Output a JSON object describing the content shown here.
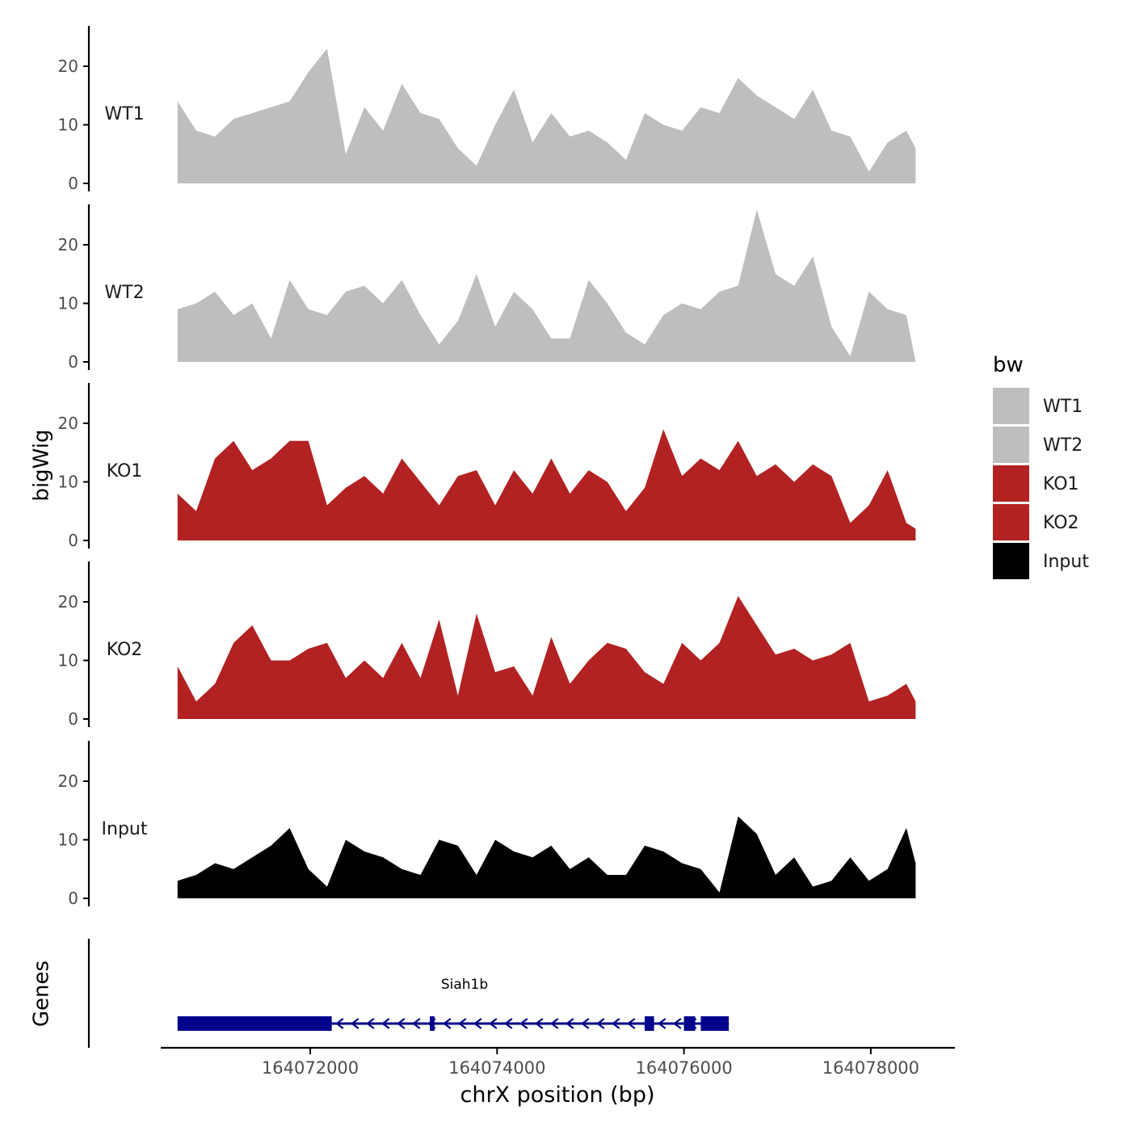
{
  "chart_data": {
    "type": "area",
    "title": "",
    "xlabel": "chrX position (bp)",
    "ylabel": "bigWig",
    "genes_label": "Genes",
    "xlim": [
      164070400,
      164078900
    ],
    "x_ticks": [
      164072000,
      164074000,
      164076000,
      164078000
    ],
    "x_tick_labels": [
      "164072000",
      "164074000",
      "164076000",
      "164078000"
    ],
    "ylim": [
      0,
      27
    ],
    "y_ticks": [
      0,
      10,
      20
    ],
    "y_tick_labels": [
      "0",
      "10",
      "20"
    ],
    "legend": {
      "title": "bw",
      "position": "right",
      "entries": [
        {
          "label": "WT1",
          "color": "#bebebe"
        },
        {
          "label": "WT2",
          "color": "#bebebe"
        },
        {
          "label": "KO1",
          "color": "#b22222"
        },
        {
          "label": "KO2",
          "color": "#b22222"
        },
        {
          "label": "Input",
          "color": "#000000"
        }
      ]
    },
    "x_positions": [
      164070580,
      164070780,
      164070980,
      164071180,
      164071380,
      164071580,
      164071780,
      164071980,
      164072180,
      164072380,
      164072580,
      164072780,
      164072980,
      164073180,
      164073380,
      164073580,
      164073780,
      164073980,
      164074180,
      164074380,
      164074580,
      164074780,
      164074980,
      164075180,
      164075380,
      164075580,
      164075780,
      164075980,
      164076180,
      164076380,
      164076580,
      164076780,
      164076980,
      164077180,
      164077380,
      164077580,
      164077780,
      164077980,
      164078180,
      164078380,
      164078480
    ],
    "series": [
      {
        "name": "WT1",
        "color": "#bebebe",
        "values": [
          14,
          9,
          8,
          11,
          12,
          13,
          14,
          19,
          23,
          5,
          13,
          9,
          17,
          12,
          11,
          6,
          3,
          10,
          16,
          7,
          12,
          8,
          9,
          7,
          4,
          12,
          10,
          9,
          13,
          12,
          18,
          15,
          13,
          11,
          16,
          9,
          8,
          2,
          7,
          9,
          6
        ]
      },
      {
        "name": "WT2",
        "color": "#bebebe",
        "values": [
          9,
          10,
          12,
          8,
          10,
          4,
          14,
          9,
          8,
          12,
          13,
          10,
          14,
          8,
          3,
          7,
          15,
          6,
          12,
          9,
          4,
          4,
          14,
          10,
          5,
          3,
          8,
          10,
          9,
          12,
          13,
          26,
          15,
          13,
          18,
          6,
          1,
          12,
          9,
          8,
          0
        ]
      },
      {
        "name": "KO1",
        "color": "#b22222",
        "values": [
          8,
          5,
          14,
          17,
          12,
          14,
          17,
          17,
          6,
          9,
          11,
          8,
          14,
          10,
          6,
          11,
          12,
          6,
          12,
          8,
          14,
          8,
          12,
          10,
          5,
          9,
          19,
          11,
          14,
          12,
          17,
          11,
          13,
          10,
          13,
          11,
          3,
          6,
          12,
          3,
          2
        ]
      },
      {
        "name": "KO2",
        "color": "#b22222",
        "values": [
          9,
          3,
          6,
          13,
          16,
          10,
          10,
          12,
          13,
          7,
          10,
          7,
          13,
          7,
          17,
          4,
          18,
          8,
          9,
          4,
          14,
          6,
          10,
          13,
          12,
          8,
          6,
          13,
          10,
          13,
          21,
          16,
          11,
          12,
          10,
          11,
          13,
          3,
          4,
          6,
          3
        ]
      },
      {
        "name": "Input",
        "color": "#000000",
        "values": [
          3,
          4,
          6,
          5,
          7,
          9,
          12,
          5,
          2,
          10,
          8,
          7,
          5,
          4,
          10,
          9,
          4,
          10,
          8,
          7,
          9,
          5,
          7,
          4,
          4,
          9,
          8,
          6,
          5,
          1,
          14,
          11,
          4,
          7,
          2,
          3,
          7,
          3,
          5,
          12,
          6
        ]
      }
    ],
    "gene": {
      "name": "Siah1b",
      "strand": "-",
      "start": 164070580,
      "end": 164076480,
      "exons": [
        [
          164070580,
          164072230
        ],
        [
          164073280,
          164073330
        ],
        [
          164075580,
          164075680
        ],
        [
          164076000,
          164076120
        ],
        [
          164076180,
          164076480
        ]
      ]
    }
  }
}
